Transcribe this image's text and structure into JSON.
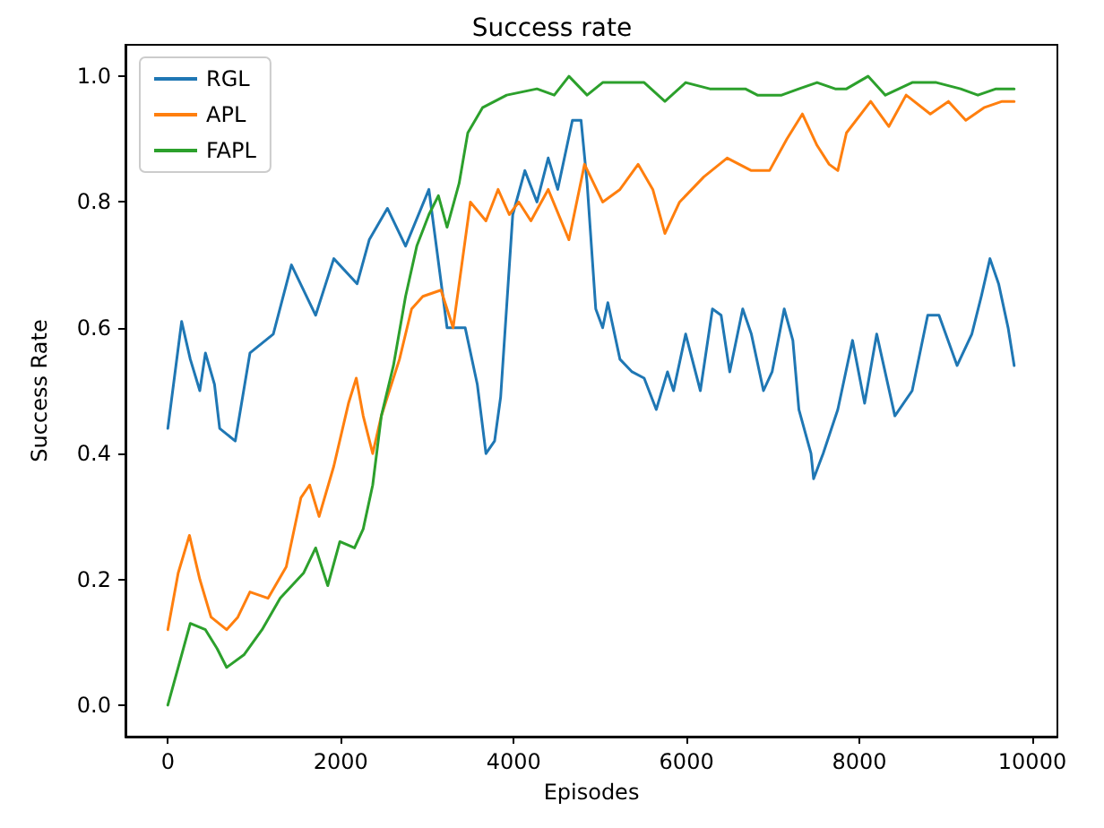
{
  "chart_data": {
    "type": "line",
    "title": "Success rate",
    "xlabel": "Episodes",
    "ylabel": "Success Rate",
    "xlim": [
      -490,
      10290
    ],
    "ylim": [
      -0.05,
      1.05
    ],
    "xticks": [
      0,
      2000,
      4000,
      6000,
      8000,
      10000
    ],
    "yticks": [
      {
        "value": 0,
        "label": "0.0"
      },
      {
        "value": 0.2,
        "label": "0.2"
      },
      {
        "value": 0.4,
        "label": "0.4"
      },
      {
        "value": 0.6,
        "label": "0.6"
      },
      {
        "value": 0.8,
        "label": "0.8"
      },
      {
        "value": 1,
        "label": "1.0"
      }
    ],
    "grid": false,
    "legend": "top left",
    "marker": "none",
    "line_style": "solid",
    "series": [
      {
        "name": "RGL",
        "color": "#1f77b4",
        "x": [
          0,
          160,
          260,
          370,
          435,
          540,
          600,
          780,
          950,
          1220,
          1430,
          1710,
          1920,
          2190,
          2330,
          2540,
          2750,
          3020,
          3230,
          3300,
          3440,
          3580,
          3680,
          3780,
          3850,
          3990,
          4130,
          4270,
          4400,
          4510,
          4680,
          4780,
          4850,
          4950,
          5030,
          5090,
          5230,
          5370,
          5510,
          5650,
          5780,
          5850,
          5990,
          6160,
          6300,
          6400,
          6500,
          6650,
          6750,
          6890,
          6990,
          7130,
          7230,
          7300,
          7440,
          7470,
          7580,
          7750,
          7920,
          8060,
          8200,
          8410,
          8610,
          8790,
          8920,
          9130,
          9300,
          9410,
          9510,
          9610,
          9720,
          9790
        ],
        "values": [
          0.44,
          0.61,
          0.55,
          0.5,
          0.56,
          0.51,
          0.44,
          0.42,
          0.56,
          0.59,
          0.7,
          0.62,
          0.71,
          0.67,
          0.74,
          0.79,
          0.73,
          0.82,
          0.6,
          0.6,
          0.6,
          0.51,
          0.4,
          0.42,
          0.49,
          0.78,
          0.85,
          0.8,
          0.87,
          0.82,
          0.93,
          0.93,
          0.83,
          0.63,
          0.6,
          0.64,
          0.55,
          0.53,
          0.52,
          0.47,
          0.53,
          0.5,
          0.59,
          0.5,
          0.63,
          0.62,
          0.53,
          0.63,
          0.59,
          0.5,
          0.53,
          0.63,
          0.58,
          0.47,
          0.4,
          0.36,
          0.4,
          0.47,
          0.58,
          0.48,
          0.59,
          0.46,
          0.5,
          0.62,
          0.62,
          0.54,
          0.59,
          0.65,
          0.71,
          0.67,
          0.6,
          0.54
        ]
      },
      {
        "name": "APL",
        "color": "#ff7f0e",
        "x": [
          0,
          120,
          250,
          370,
          500,
          680,
          810,
          950,
          1160,
          1370,
          1540,
          1640,
          1750,
          1920,
          2090,
          2180,
          2260,
          2370,
          2470,
          2680,
          2820,
          2950,
          3160,
          3300,
          3400,
          3500,
          3680,
          3820,
          3950,
          4060,
          4200,
          4400,
          4640,
          4820,
          5030,
          5230,
          5440,
          5610,
          5750,
          5920,
          6200,
          6470,
          6750,
          6960,
          7160,
          7340,
          7510,
          7650,
          7750,
          7850,
          8130,
          8340,
          8540,
          8820,
          9030,
          9230,
          9440,
          9650,
          9790
        ],
        "values": [
          0.12,
          0.21,
          0.27,
          0.2,
          0.14,
          0.12,
          0.14,
          0.18,
          0.17,
          0.22,
          0.33,
          0.35,
          0.3,
          0.38,
          0.48,
          0.52,
          0.46,
          0.4,
          0.46,
          0.55,
          0.63,
          0.65,
          0.66,
          0.6,
          0.7,
          0.8,
          0.77,
          0.82,
          0.78,
          0.8,
          0.77,
          0.82,
          0.74,
          0.86,
          0.8,
          0.82,
          0.86,
          0.82,
          0.75,
          0.8,
          0.84,
          0.87,
          0.85,
          0.85,
          0.9,
          0.94,
          0.89,
          0.86,
          0.85,
          0.91,
          0.96,
          0.92,
          0.97,
          0.94,
          0.96,
          0.93,
          0.95,
          0.96,
          0.96
        ]
      },
      {
        "name": "FAPL",
        "color": "#2ca02c",
        "x": [
          0,
          120,
          260,
          435,
          570,
          680,
          880,
          1090,
          1300,
          1570,
          1710,
          1850,
          1990,
          2160,
          2260,
          2370,
          2470,
          2610,
          2750,
          2880,
          3020,
          3130,
          3230,
          3370,
          3470,
          3640,
          3920,
          4270,
          4470,
          4640,
          4850,
          5030,
          5300,
          5510,
          5750,
          5990,
          6270,
          6680,
          6820,
          7100,
          7300,
          7510,
          7720,
          7850,
          8100,
          8300,
          8610,
          8890,
          9170,
          9370,
          9580,
          9790
        ],
        "values": [
          0,
          0.06,
          0.13,
          0.12,
          0.09,
          0.06,
          0.08,
          0.12,
          0.17,
          0.21,
          0.25,
          0.19,
          0.26,
          0.25,
          0.28,
          0.35,
          0.46,
          0.54,
          0.65,
          0.73,
          0.78,
          0.81,
          0.76,
          0.83,
          0.91,
          0.95,
          0.97,
          0.98,
          0.97,
          1,
          0.97,
          0.99,
          0.99,
          0.99,
          0.96,
          0.99,
          0.98,
          0.98,
          0.97,
          0.97,
          0.98,
          0.99,
          0.98,
          0.98,
          1,
          0.97,
          0.99,
          0.99,
          0.98,
          0.97,
          0.98,
          0.98
        ]
      }
    ]
  }
}
